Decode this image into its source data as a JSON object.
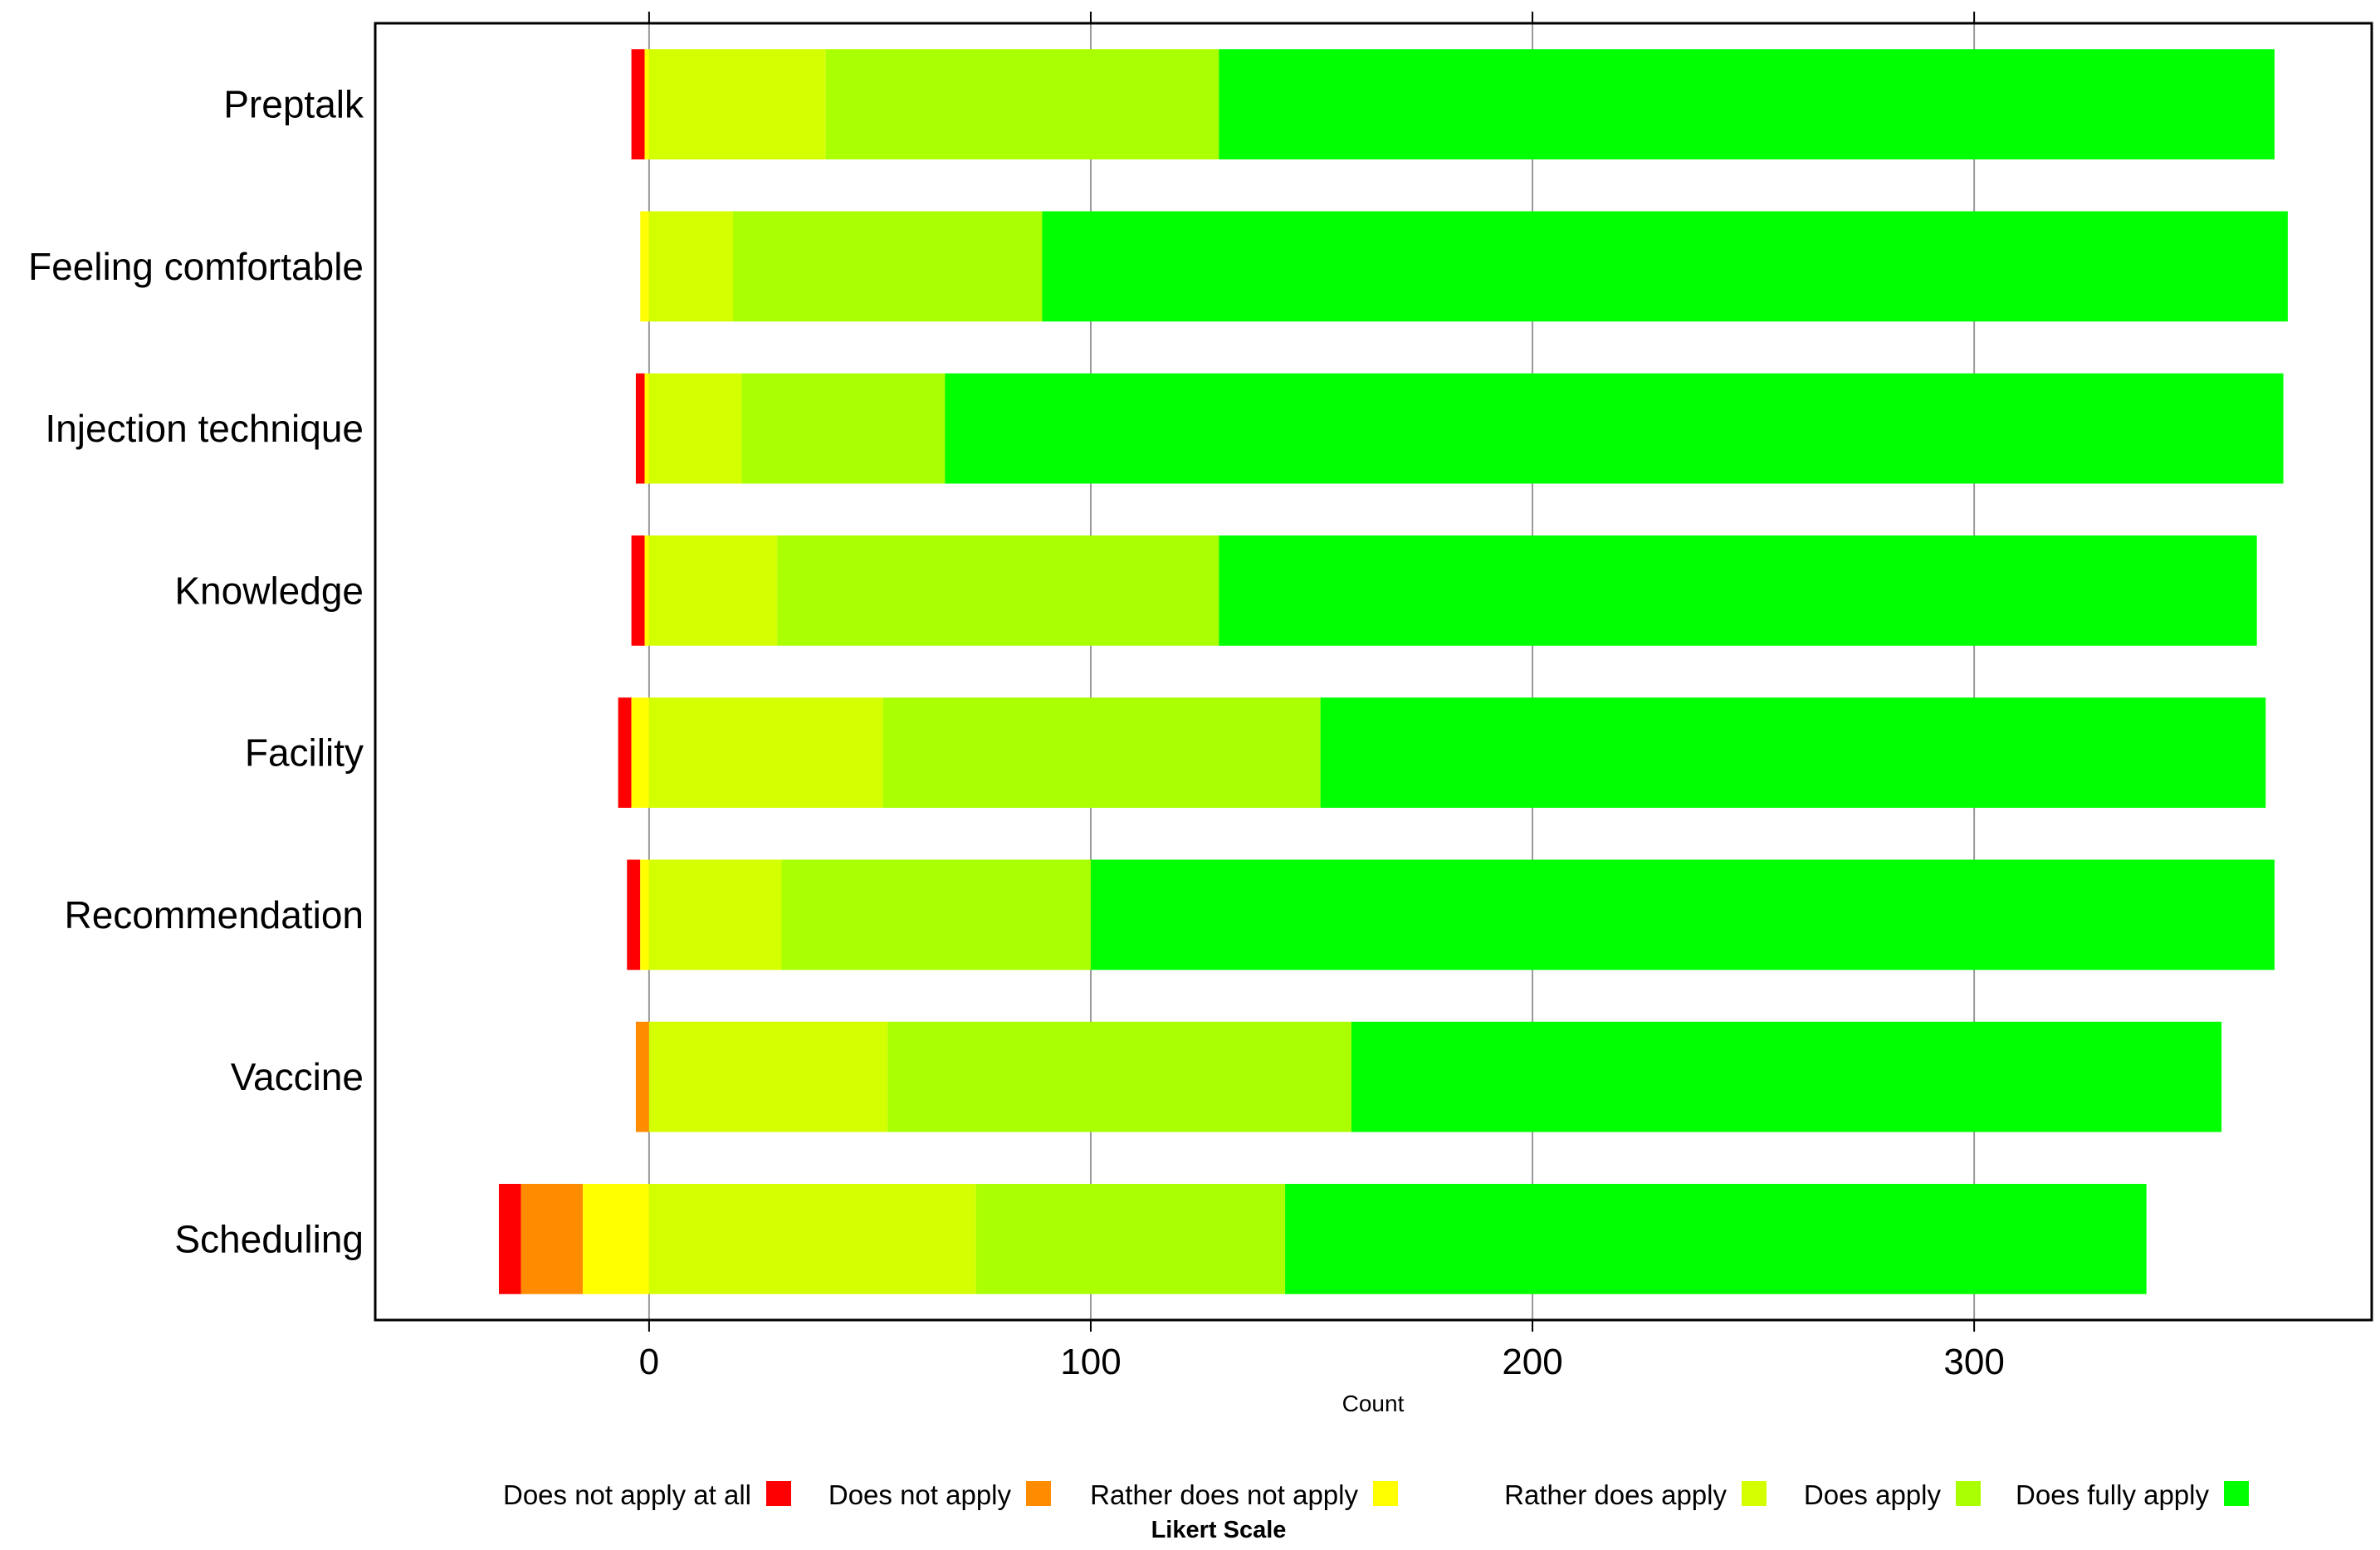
{
  "chart_data": {
    "type": "bar",
    "orientation": "horizontal",
    "stacked": "diverging",
    "title": "",
    "xlabel": "Count",
    "ylabel": "",
    "xlim": [
      -62,
      390
    ],
    "xticks": [
      0,
      100,
      200,
      300
    ],
    "xtick_labels": [
      "0",
      "100",
      "200",
      "300"
    ],
    "grid": "vertical",
    "categories": [
      "Preptalk",
      "Feeling comfortable",
      "Injection technique",
      "Knowledge",
      "Facility",
      "Recommendation",
      "Vaccine",
      "Scheduling"
    ],
    "legend_title": "Likert Scale",
    "legend_position": "bottom",
    "series": [
      {
        "name": "Does not apply at all",
        "color": "#ff0000",
        "side": "negative",
        "values": [
          3,
          0,
          2,
          3,
          3,
          3,
          0,
          5
        ]
      },
      {
        "name": "Does not apply",
        "color": "#ff8c00",
        "side": "negative",
        "values": [
          0,
          0,
          0,
          0,
          0,
          0,
          3,
          14
        ]
      },
      {
        "name": "Rather does not apply",
        "color": "#ffff00",
        "side": "negative",
        "values": [
          1,
          2,
          1,
          1,
          4,
          2,
          0,
          15
        ]
      },
      {
        "name": "Rather does apply",
        "color": "#d4ff00",
        "side": "positive",
        "values": [
          40,
          19,
          21,
          29,
          53,
          30,
          54,
          74
        ]
      },
      {
        "name": "Does apply",
        "color": "#aaff00",
        "side": "positive",
        "values": [
          89,
          70,
          46,
          100,
          99,
          70,
          105,
          70
        ]
      },
      {
        "name": "Does fully apply",
        "color": "#00ff00",
        "side": "positive",
        "values": [
          239,
          282,
          303,
          235,
          214,
          268,
          197,
          195
        ]
      }
    ]
  }
}
